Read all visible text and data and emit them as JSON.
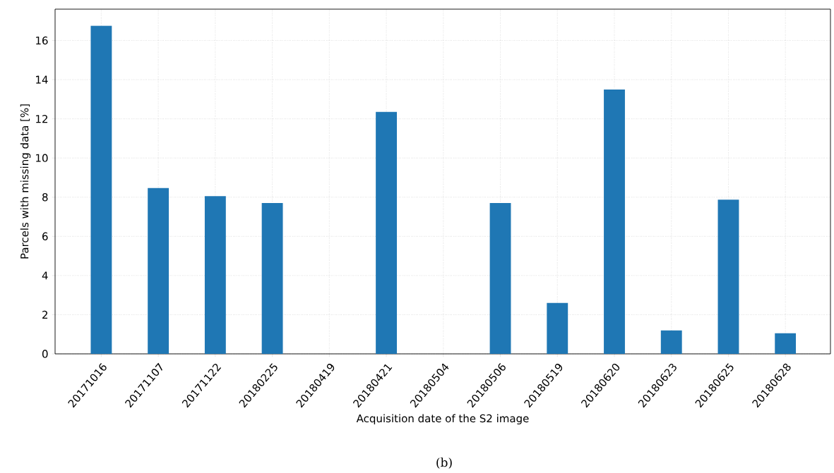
{
  "chart_data": {
    "type": "bar",
    "categories": [
      "20171016",
      "20171107",
      "20171122",
      "20180225",
      "20180419",
      "20180421",
      "20180504",
      "20180506",
      "20180519",
      "20180620",
      "20180623",
      "20180625",
      "20180628"
    ],
    "values": [
      16.75,
      8.47,
      8.05,
      7.7,
      0,
      12.35,
      0,
      7.7,
      2.6,
      13.5,
      1.2,
      7.87,
      1.05
    ],
    "color": "#1f77b4",
    "xlabel": "Acquisition date of the S2 image",
    "ylabel": "Parcels with missing data [%]",
    "ylim": [
      0,
      17.6
    ],
    "yticks": [
      0,
      2,
      4,
      6,
      8,
      10,
      12,
      14,
      16
    ],
    "grid": true,
    "annotations": [
      "(b)"
    ]
  }
}
